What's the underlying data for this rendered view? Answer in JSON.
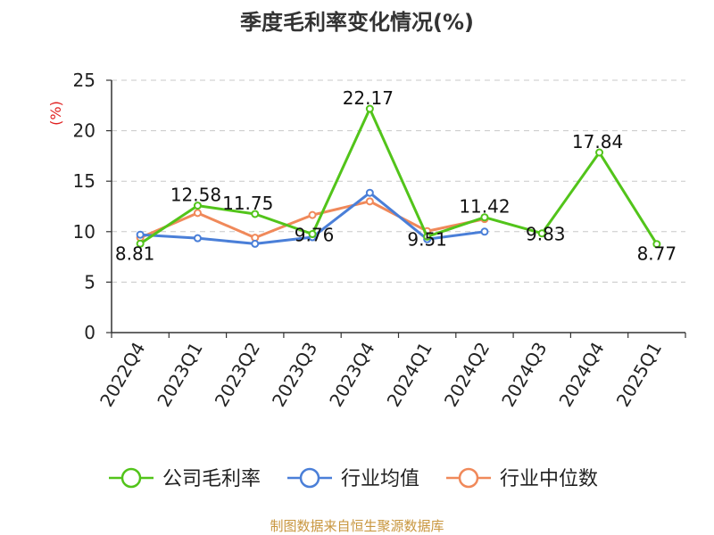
{
  "chart_data": {
    "type": "line",
    "title": "季度毛利率变化情况(%)",
    "ylabel": "(%)",
    "xlabel": "",
    "ylim": [
      0,
      25
    ],
    "yticks": [
      0,
      5,
      10,
      15,
      20,
      25
    ],
    "grid": true,
    "legend_position": "bottom",
    "categories": [
      "2022Q4",
      "2023Q1",
      "2023Q2",
      "2023Q3",
      "2023Q4",
      "2024Q1",
      "2024Q2",
      "2024Q3",
      "2024Q4",
      "2025Q1"
    ],
    "series": [
      {
        "name": "公司毛利率",
        "color": "#52c41a",
        "values": [
          8.81,
          12.58,
          11.75,
          9.76,
          22.17,
          9.51,
          11.42,
          9.83,
          17.84,
          8.77
        ],
        "data_labels": [
          "8.81",
          "12.58",
          "11.75",
          "9.76",
          "22.17",
          "9.51",
          "11.42",
          "9.83",
          "17.84",
          "8.77"
        ]
      },
      {
        "name": "行业均值",
        "color": "#4a7fd8",
        "values": [
          9.7,
          9.35,
          8.8,
          9.45,
          13.85,
          9.25,
          10.0,
          null,
          null,
          null
        ]
      },
      {
        "name": "行业中位数",
        "color": "#f0895a",
        "values": [
          9.4,
          11.85,
          9.4,
          11.65,
          13.0,
          10.05,
          11.25,
          null,
          null,
          null
        ]
      }
    ]
  },
  "source": {
    "text": "制图数据来自恒生聚源数据库",
    "color": "#c8963e"
  },
  "ylabel_color": "#e02020"
}
